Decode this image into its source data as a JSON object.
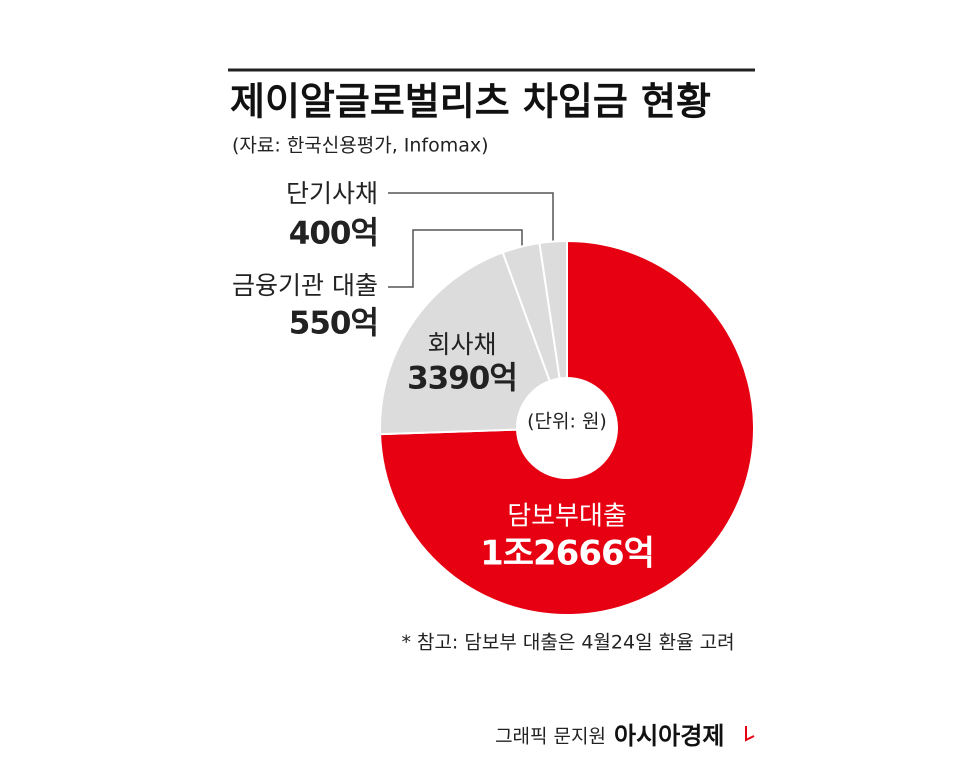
{
  "chart_data": {
    "type": "donut",
    "title": "제이알글로벌리츠 차입금 현황",
    "subtitle": "(자료: 한국신용평가, Infomax)",
    "center_label": "(단위: 원)",
    "categories": [
      "담보부대출",
      "회사채",
      "금융기관 대출",
      "단기사채"
    ],
    "values": [
      12666,
      3390,
      550,
      400
    ],
    "value_labels": [
      "1조2666억",
      "3390억",
      "550억",
      "400억"
    ],
    "colors": [
      "#e60012",
      "#dcdcdc",
      "#dcdcdc",
      "#dcdcdc"
    ],
    "note": "* 참고: 담보부 대출은 4월24일 환율 고려",
    "credit": "그래픽 문지원",
    "source_brand": "아시아경제"
  }
}
